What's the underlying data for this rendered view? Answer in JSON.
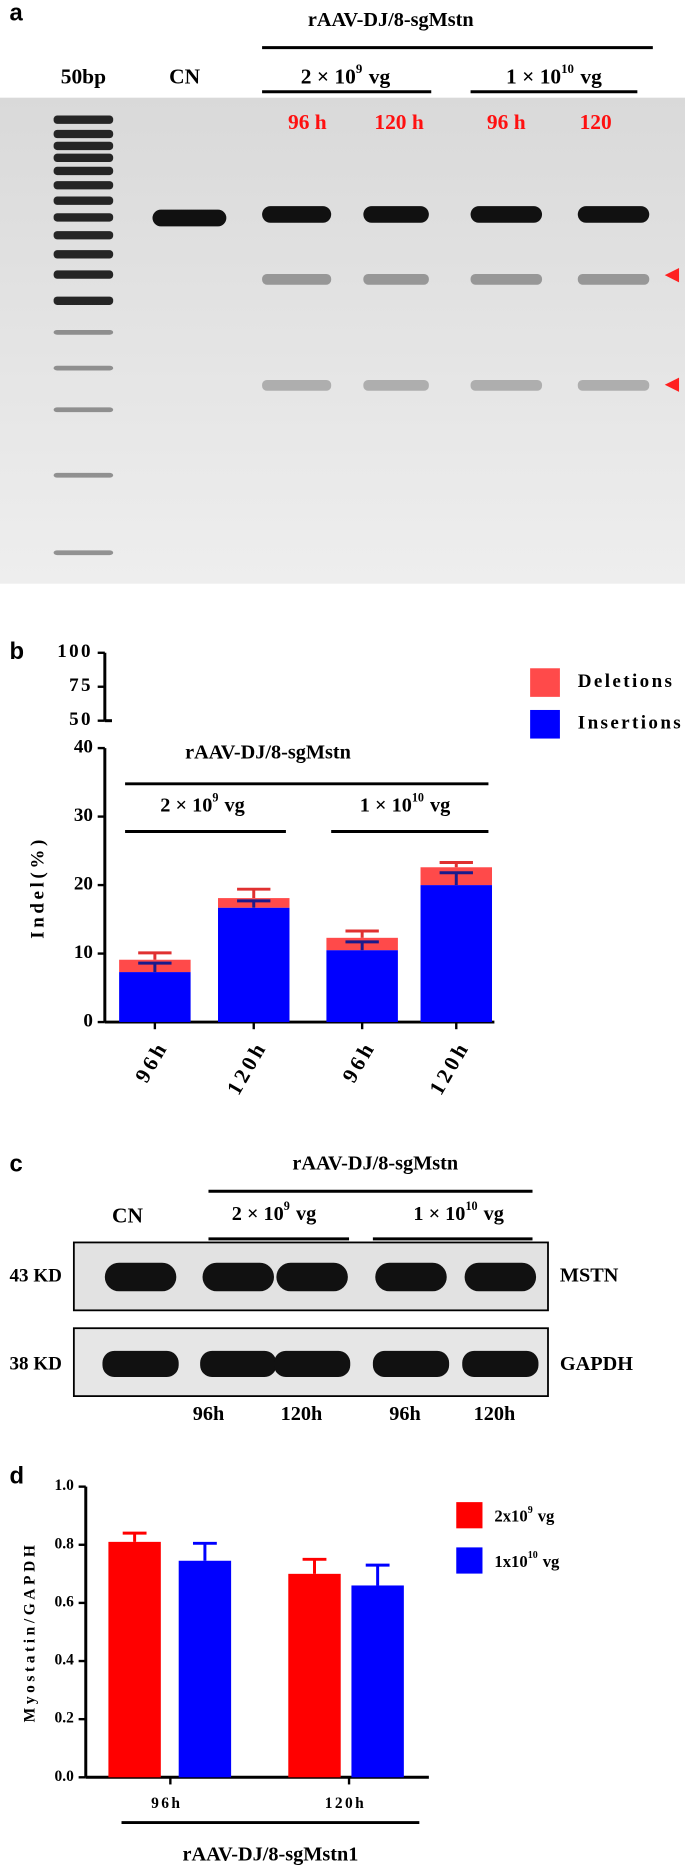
{
  "panel_labels": [
    "a",
    "b",
    "c",
    "d"
  ],
  "gel_a": {
    "construct": "rAAV-DJ/8-sgMstn",
    "lanes": [
      "50bp",
      "CN"
    ],
    "doses": [
      {
        "mantissa": "2 × 10",
        "exponent": "9",
        "unit": "vg"
      },
      {
        "mantissa": "1 × 10",
        "exponent": "10",
        "unit": "vg"
      }
    ],
    "times": [
      "96 h",
      "120 h",
      "96 h",
      "120"
    ]
  },
  "blot_c": {
    "construct": "rAAV-DJ/8-sgMstn",
    "control": "CN",
    "doses": [
      {
        "mantissa": "2 × 10",
        "exponent": "9",
        "unit": "vg"
      },
      {
        "mantissa": "1 × 10",
        "exponent": "10",
        "unit": "vg"
      }
    ],
    "rows": [
      {
        "size": "43 KD",
        "protein": "MSTN"
      },
      {
        "size": "38 KD",
        "protein": "GAPDH"
      }
    ],
    "times": [
      "96h",
      "120h",
      "96h",
      "120h"
    ]
  },
  "chart_data": [
    {
      "type": "stacked-bar",
      "y_label": "Indel(%)",
      "categories": [
        "96h",
        "120h",
        "96h",
        "120h"
      ],
      "series": [
        {
          "name": "Insertions",
          "color": "#0000ff",
          "values": [
            7.3,
            16.7,
            10.5,
            20
          ],
          "errors": [
            1.3,
            1.0,
            1.2,
            1.8
          ]
        },
        {
          "name": "Deletions",
          "color": "#ff4a4a",
          "values": [
            1.8,
            1.4,
            1.8,
            2.6
          ],
          "errors": [
            1.0,
            1.3,
            1.0,
            0.7
          ]
        }
      ],
      "ylim": [
        0,
        40
      ],
      "yticks": [
        0,
        10,
        20,
        30,
        40
      ],
      "upper_axis": {
        "ylim": [
          50,
          100
        ],
        "yticks": [
          50,
          75,
          100
        ]
      },
      "construct": "rAAV-DJ/8-sgMstn",
      "doses": [
        {
          "mantissa": "2 × 10",
          "exponent": "9",
          "unit": "vg"
        },
        {
          "mantissa": "1 × 10",
          "exponent": "10",
          "unit": "vg"
        }
      ],
      "legend": "top-right"
    },
    {
      "type": "grouped-bar",
      "y_label": "Myostatin/GAPDH",
      "x_label": "rAAV-DJ/8-sgMstn1",
      "categories": [
        "96h",
        "120h"
      ],
      "series": [
        {
          "name": "2x10",
          "name_exponent": "9",
          "name_unit": "vg",
          "color": "#ff0000",
          "values": [
            0.81,
            0.7
          ],
          "errors": [
            0.03,
            0.05
          ]
        },
        {
          "name": "1x10",
          "name_exponent": "10",
          "name_unit": "vg",
          "color": "#0000ff",
          "values": [
            0.745,
            0.66
          ],
          "errors": [
            0.06,
            0.07
          ]
        }
      ],
      "ylim": [
        0,
        1.0
      ],
      "yticks": [
        {
          "value": 0,
          "label": "0.0"
        },
        {
          "value": 0.2,
          "label": "0.2"
        },
        {
          "value": 0.4,
          "label": "0.4"
        },
        {
          "value": 0.6,
          "label": "0.6"
        },
        {
          "value": 0.8,
          "label": "0.8"
        },
        {
          "value": 1.0,
          "label": "1.0"
        }
      ],
      "legend": "top-right"
    }
  ]
}
